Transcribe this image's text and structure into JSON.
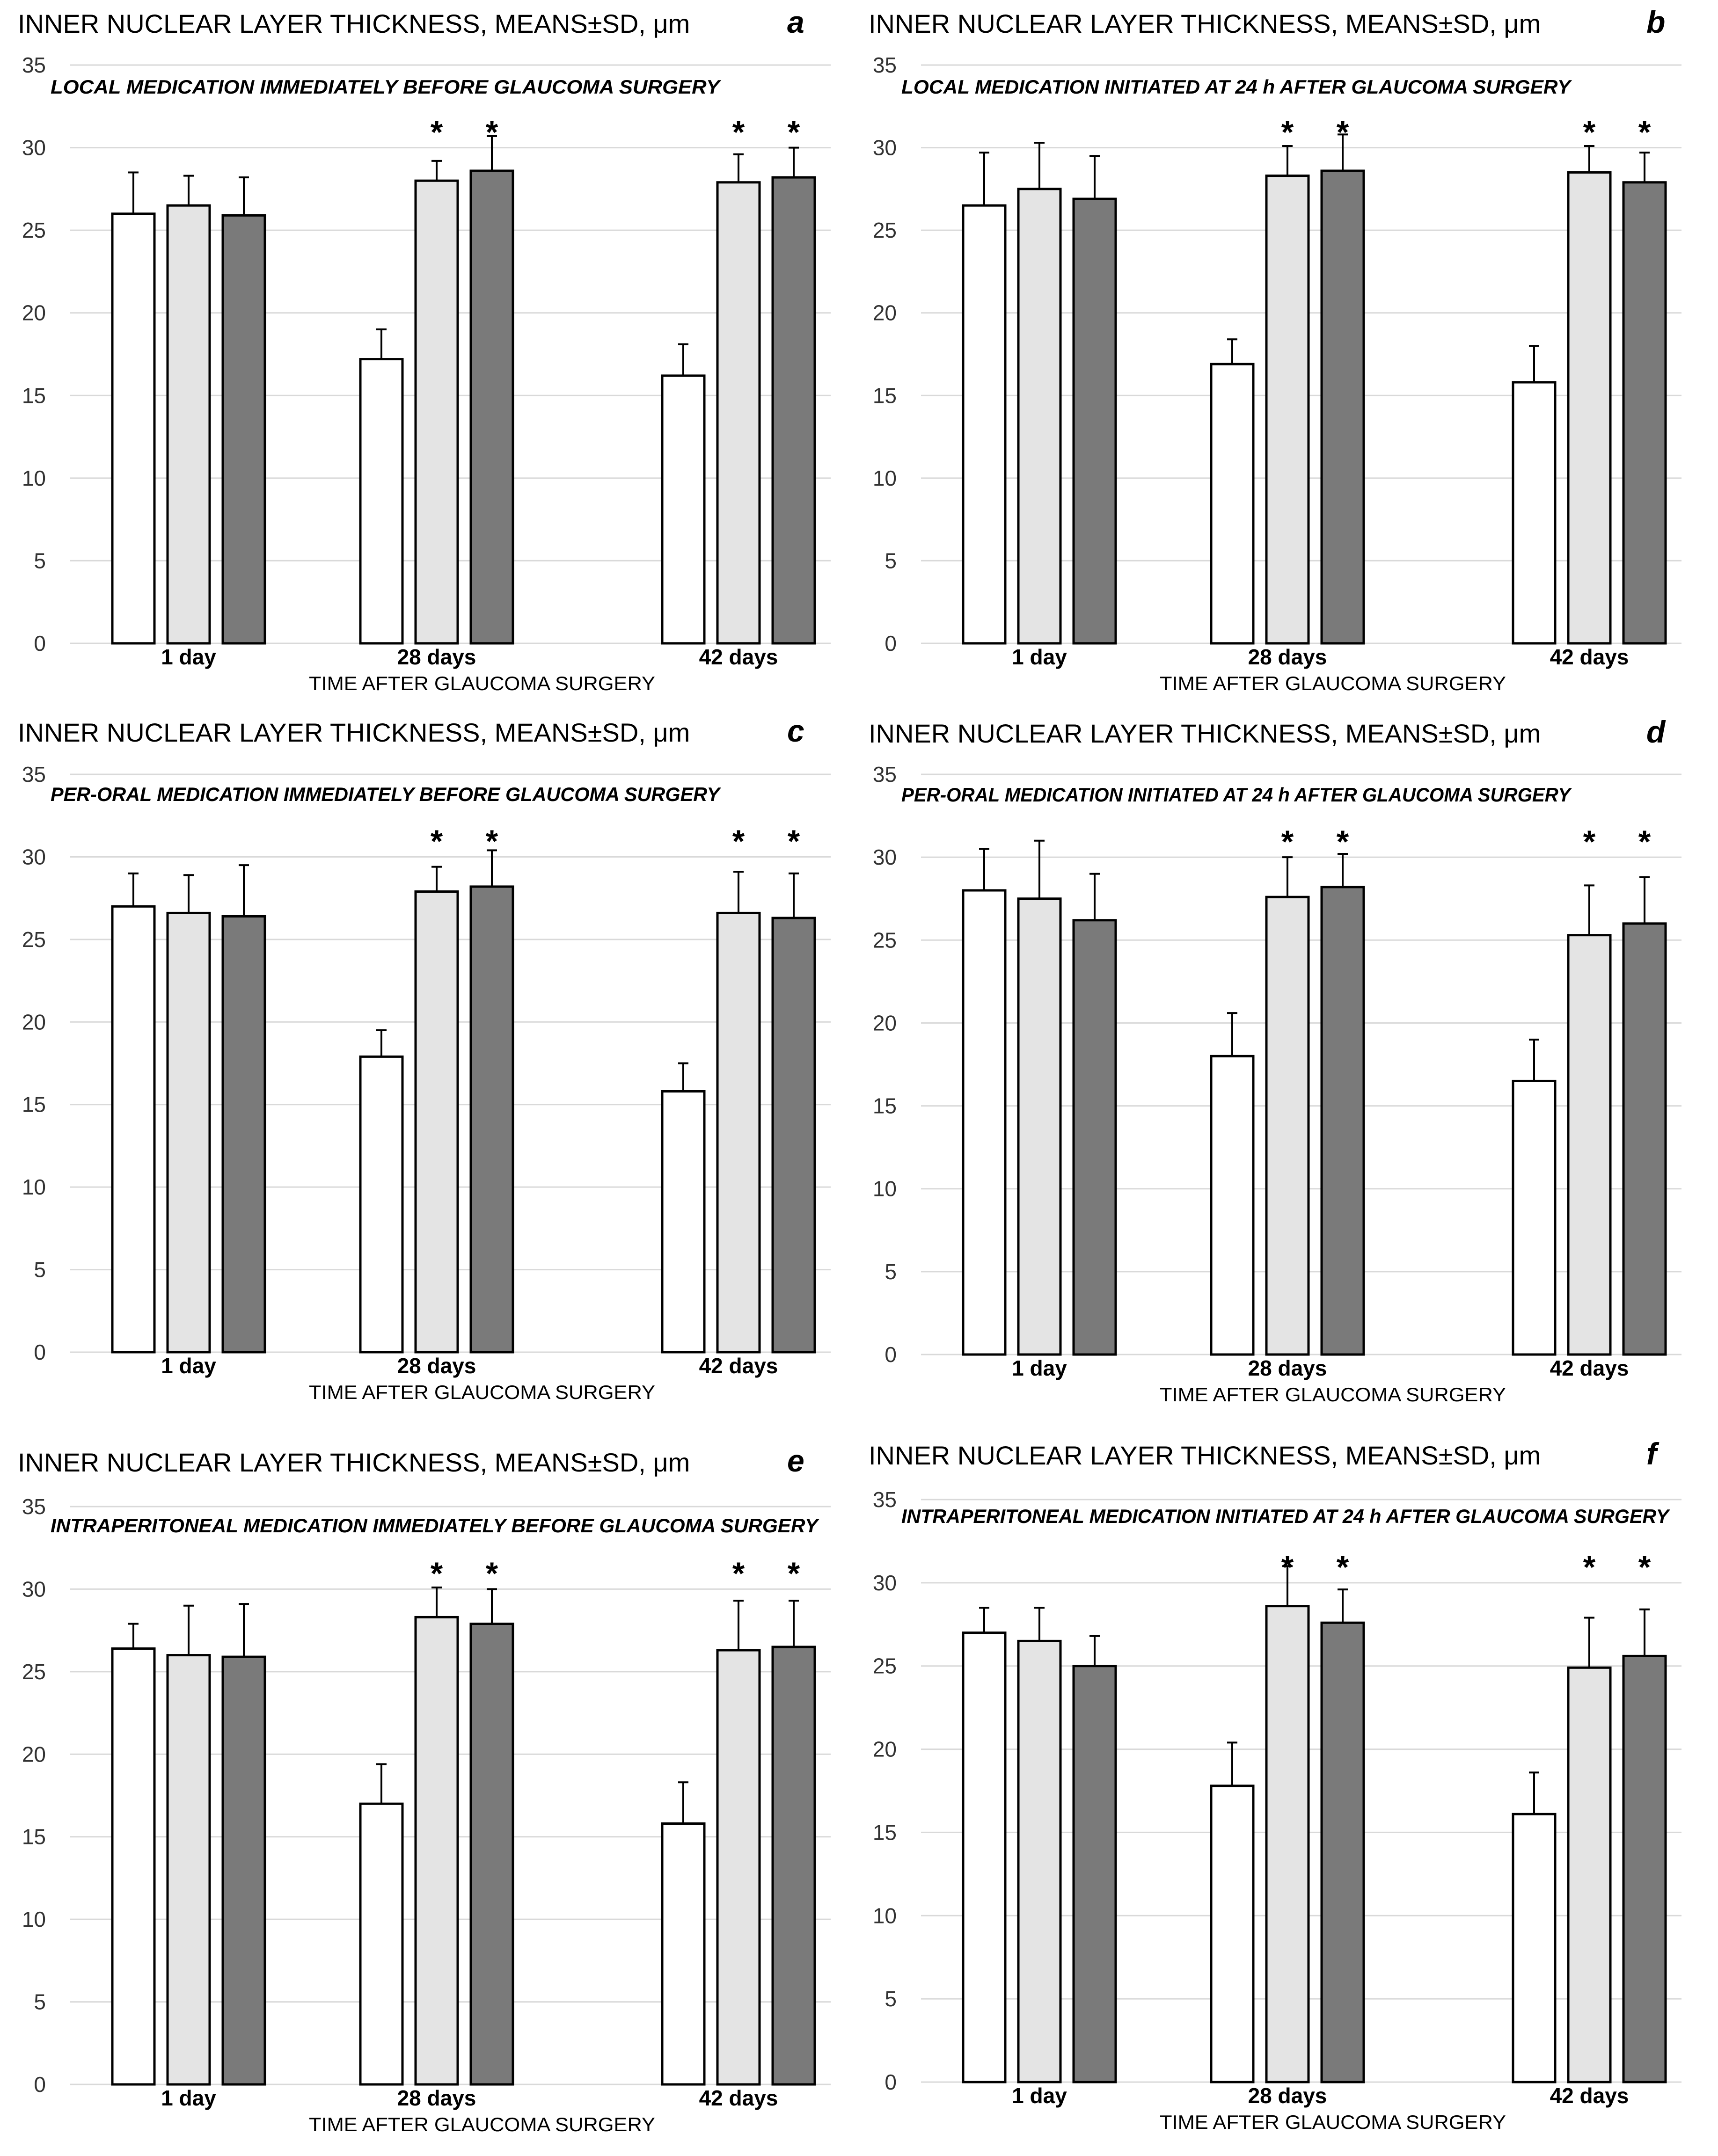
{
  "figure": {
    "style": {
      "bar_colors": [
        "#ffffff",
        "#e4e4e4",
        "#7a7a7a"
      ],
      "bar_stroke": "#000000",
      "grid_color": "#d9d9d9",
      "text_color": "#000000"
    }
  },
  "chart_data": [
    {
      "type": "bar",
      "panel_label": "a",
      "title": "INNER NUCLEAR LAYER THICKNESS, MEANS±SD, μm",
      "subtitle": "LOCAL MEDICATION IMMEDIATELY BEFORE GLAUCOMA SURGERY",
      "xlabel": "TIME AFTER GLAUCOMA SURGERY",
      "ylabel": "",
      "categories": [
        "1 day",
        "28 days",
        "42 days"
      ],
      "ylim": [
        0,
        35
      ],
      "yticks": [
        0,
        5,
        10,
        15,
        20,
        25,
        30,
        35
      ],
      "grid": true,
      "series": [
        {
          "name": "",
          "values": [
            26.0,
            17.2,
            16.2
          ],
          "errors": [
            2.5,
            1.8,
            1.9
          ],
          "significant": [
            false,
            false,
            false
          ]
        },
        {
          "name": "",
          "values": [
            26.5,
            28.0,
            27.9
          ],
          "errors": [
            1.8,
            1.2,
            1.7
          ],
          "significant": [
            false,
            true,
            true
          ]
        },
        {
          "name": "",
          "values": [
            25.9,
            28.6,
            28.2
          ],
          "errors": [
            2.3,
            2.1,
            1.8
          ],
          "significant": [
            false,
            true,
            true
          ]
        }
      ]
    },
    {
      "type": "bar",
      "panel_label": "b",
      "title": "INNER NUCLEAR LAYER THICKNESS, MEANS±SD, μm",
      "subtitle": "LOCAL MEDICATION INITIATED AT 24 h AFTER GLAUCOMA SURGERY",
      "xlabel": "TIME AFTER GLAUCOMA SURGERY",
      "ylabel": "",
      "categories": [
        "1 day",
        "28 days",
        "42 days"
      ],
      "ylim": [
        0,
        35
      ],
      "yticks": [
        0,
        5,
        10,
        15,
        20,
        25,
        30,
        35
      ],
      "grid": true,
      "series": [
        {
          "name": "",
          "values": [
            26.5,
            16.9,
            15.8
          ],
          "errors": [
            3.2,
            1.5,
            2.2
          ],
          "significant": [
            false,
            false,
            false
          ]
        },
        {
          "name": "",
          "values": [
            27.5,
            28.3,
            28.5
          ],
          "errors": [
            2.8,
            1.8,
            1.6
          ],
          "significant": [
            false,
            true,
            true
          ]
        },
        {
          "name": "",
          "values": [
            26.9,
            28.6,
            27.9
          ],
          "errors": [
            2.6,
            2.2,
            1.8
          ],
          "significant": [
            false,
            true,
            true
          ]
        }
      ]
    },
    {
      "type": "bar",
      "panel_label": "c",
      "title": "INNER NUCLEAR LAYER THICKNESS, MEANS±SD, μm",
      "subtitle": "PER-ORAL MEDICATION IMMEDIATELY BEFORE GLAUCOMA SURGERY",
      "xlabel": "TIME AFTER GLAUCOMA SURGERY",
      "ylabel": "",
      "categories": [
        "1 day",
        "28 days",
        "42 days"
      ],
      "ylim": [
        0,
        35
      ],
      "yticks": [
        0,
        5,
        10,
        15,
        20,
        25,
        30,
        35
      ],
      "grid": true,
      "series": [
        {
          "name": "",
          "values": [
            27.0,
            17.9,
            15.8
          ],
          "errors": [
            2.0,
            1.6,
            1.7
          ],
          "significant": [
            false,
            false,
            false
          ]
        },
        {
          "name": "",
          "values": [
            26.6,
            27.9,
            26.6
          ],
          "errors": [
            2.3,
            1.5,
            2.5
          ],
          "significant": [
            false,
            true,
            true
          ]
        },
        {
          "name": "",
          "values": [
            26.4,
            28.2,
            26.3
          ],
          "errors": [
            3.1,
            2.2,
            2.7
          ],
          "significant": [
            false,
            true,
            true
          ]
        }
      ]
    },
    {
      "type": "bar",
      "panel_label": "d",
      "title": "INNER NUCLEAR LAYER THICKNESS, MEANS±SD, μm",
      "subtitle": "PER-ORAL MEDICATION INITIATED AT 24 h AFTER GLAUCOMA SURGERY",
      "xlabel": "TIME AFTER GLAUCOMA SURGERY",
      "ylabel": "",
      "categories": [
        "1 day",
        "28 days",
        "42 days"
      ],
      "ylim": [
        0,
        35
      ],
      "yticks": [
        0,
        5,
        10,
        15,
        20,
        25,
        30,
        35
      ],
      "grid": true,
      "series": [
        {
          "name": "",
          "values": [
            28.0,
            18.0,
            16.5
          ],
          "errors": [
            2.5,
            2.6,
            2.5
          ],
          "significant": [
            false,
            false,
            false
          ]
        },
        {
          "name": "",
          "values": [
            27.5,
            27.6,
            25.3
          ],
          "errors": [
            3.5,
            2.4,
            3.0
          ],
          "significant": [
            false,
            true,
            true
          ]
        },
        {
          "name": "",
          "values": [
            26.2,
            28.2,
            26.0
          ],
          "errors": [
            2.8,
            2.0,
            2.8
          ],
          "significant": [
            false,
            true,
            true
          ]
        }
      ]
    },
    {
      "type": "bar",
      "panel_label": "e",
      "title": "INNER NUCLEAR LAYER THICKNESS, MEANS±SD, μm",
      "subtitle": "INTRAPERITONEAL MEDICATION IMMEDIATELY BEFORE GLAUCOMA SURGERY",
      "xlabel": "TIME AFTER GLAUCOMA SURGERY",
      "ylabel": "",
      "categories": [
        "1 day",
        "28 days",
        "42 days"
      ],
      "ylim": [
        0,
        35
      ],
      "yticks": [
        0,
        5,
        10,
        15,
        20,
        25,
        30,
        35
      ],
      "grid": true,
      "series": [
        {
          "name": "",
          "values": [
            26.4,
            17.0,
            15.8
          ],
          "errors": [
            1.5,
            2.4,
            2.5
          ],
          "significant": [
            false,
            false,
            false
          ]
        },
        {
          "name": "",
          "values": [
            26.0,
            28.3,
            26.3
          ],
          "errors": [
            3.0,
            1.8,
            3.0
          ],
          "significant": [
            false,
            true,
            true
          ]
        },
        {
          "name": "",
          "values": [
            25.9,
            27.9,
            26.5
          ],
          "errors": [
            3.2,
            2.1,
            2.8
          ],
          "significant": [
            false,
            true,
            true
          ]
        }
      ]
    },
    {
      "type": "bar",
      "panel_label": "f",
      "title": "INNER NUCLEAR LAYER THICKNESS, MEANS±SD, μm",
      "subtitle": "INTRAPERITONEAL MEDICATION INITIATED AT 24 h AFTER GLAUCOMA SURGERY",
      "xlabel": "TIME AFTER GLAUCOMA SURGERY",
      "ylabel": "",
      "categories": [
        "1 day",
        "28 days",
        "42 days"
      ],
      "ylim": [
        0,
        35
      ],
      "yticks": [
        0,
        5,
        10,
        15,
        20,
        25,
        30,
        35
      ],
      "grid": true,
      "series": [
        {
          "name": "",
          "values": [
            27.0,
            17.8,
            16.1
          ],
          "errors": [
            1.5,
            2.6,
            2.5
          ],
          "significant": [
            false,
            false,
            false
          ]
        },
        {
          "name": "",
          "values": [
            26.5,
            28.6,
            24.9
          ],
          "errors": [
            2.0,
            2.4,
            3.0
          ],
          "significant": [
            false,
            true,
            true
          ]
        },
        {
          "name": "",
          "values": [
            25.0,
            27.6,
            25.6
          ],
          "errors": [
            1.8,
            2.0,
            2.8
          ],
          "significant": [
            false,
            true,
            true
          ]
        }
      ]
    }
  ]
}
